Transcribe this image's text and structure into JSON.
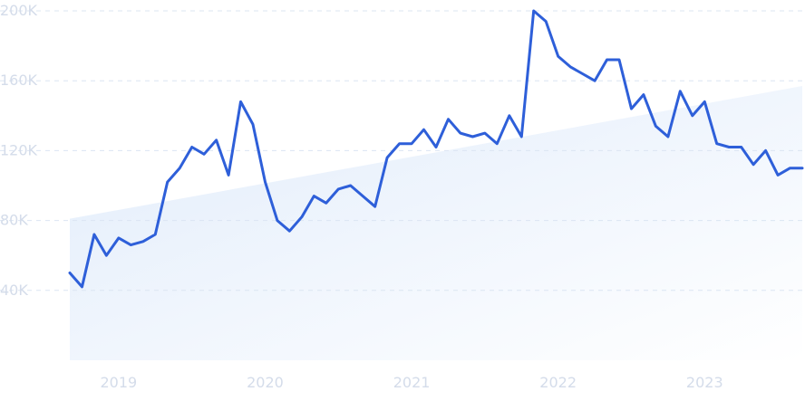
{
  "chart_data": {
    "type": "line",
    "title": "",
    "xlabel": "",
    "ylabel": "",
    "x_tick_labels": [
      "2019",
      "2020",
      "2021",
      "2022",
      "2023"
    ],
    "y_tick_labels": [
      "40K",
      "80K",
      "120K",
      "160K",
      "200K"
    ],
    "y_ticks": [
      40000,
      80000,
      120000,
      160000,
      200000
    ],
    "ylim": [
      0,
      200000
    ],
    "xlim": [
      "2018-10",
      "2023-10"
    ],
    "grid": true,
    "trend": {
      "start": 81000,
      "end": 157000
    },
    "series": [
      {
        "x": [
          "2018-10",
          "2018-11",
          "2018-12",
          "2019-01",
          "2019-02",
          "2019-03",
          "2019-04",
          "2019-05",
          "2019-06",
          "2019-07",
          "2019-08",
          "2019-09",
          "2019-10",
          "2019-11",
          "2019-12",
          "2020-01",
          "2020-02",
          "2020-03",
          "2020-04",
          "2020-05",
          "2020-06",
          "2020-07",
          "2020-08",
          "2020-09",
          "2020-10",
          "2020-11",
          "2020-12",
          "2021-01",
          "2021-02",
          "2021-03",
          "2021-04",
          "2021-05",
          "2021-06",
          "2021-07",
          "2021-08",
          "2021-09",
          "2021-10",
          "2021-11",
          "2021-12",
          "2022-01",
          "2022-02",
          "2022-03",
          "2022-04",
          "2022-05",
          "2022-06",
          "2022-07",
          "2022-08",
          "2022-09",
          "2022-10",
          "2022-11",
          "2022-12",
          "2023-01",
          "2023-02",
          "2023-03",
          "2023-04",
          "2023-05",
          "2023-06",
          "2023-07",
          "2023-08",
          "2023-09",
          "2023-10"
        ],
        "values": [
          50000,
          42000,
          72000,
          60000,
          70000,
          66000,
          68000,
          72000,
          102000,
          110000,
          122000,
          118000,
          126000,
          106000,
          148000,
          135000,
          102000,
          80000,
          74000,
          82000,
          94000,
          90000,
          98000,
          100000,
          94000,
          88000,
          116000,
          124000,
          124000,
          132000,
          122000,
          138000,
          130000,
          128000,
          130000,
          124000,
          140000,
          128000,
          200000,
          194000,
          174000,
          168000,
          164000,
          160000,
          172000,
          172000,
          144000,
          152000,
          134000,
          128000,
          154000,
          140000,
          148000,
          124000,
          122000,
          122000,
          112000,
          120000,
          106000,
          110000,
          110000
        ]
      }
    ],
    "colors": {
      "line": "#2e5fd9",
      "area_top": "#e1ecfb",
      "area_bottom": "#ffffff",
      "grid": "#dbe5f2",
      "tick_text": "#d4dcea"
    }
  }
}
